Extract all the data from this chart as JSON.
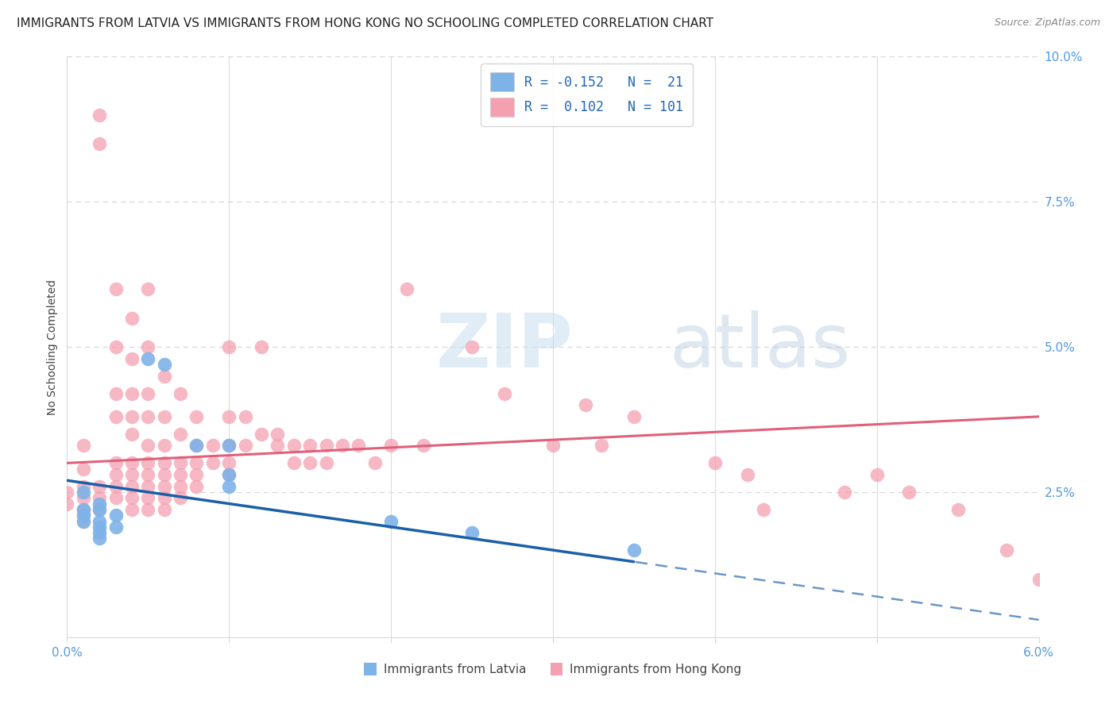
{
  "title": "IMMIGRANTS FROM LATVIA VS IMMIGRANTS FROM HONG KONG NO SCHOOLING COMPLETED CORRELATION CHART",
  "source": "Source: ZipAtlas.com",
  "ylabel": "No Schooling Completed",
  "xlim": [
    0.0,
    0.06
  ],
  "ylim": [
    0.0,
    0.1
  ],
  "xtick_positions": [
    0.0,
    0.01,
    0.02,
    0.03,
    0.04,
    0.05,
    0.06
  ],
  "xtick_labels": [
    "0.0%",
    "",
    "",
    "",
    "",
    "",
    "6.0%"
  ],
  "ytick_labels_right": [
    "2.5%",
    "5.0%",
    "7.5%",
    "10.0%"
  ],
  "yticks_right": [
    0.025,
    0.05,
    0.075,
    0.1
  ],
  "latvia_color": "#7EB3E8",
  "hongkong_color": "#F4A0B0",
  "latvia_line_color": "#1A5FA8",
  "hongkong_line_color": "#E0607A",
  "background_color": "#ffffff",
  "grid_color": "#d8d8d8",
  "axis_color": "#5599dd",
  "watermark": "ZIPatlas",
  "legend_R1": "R = -0.152",
  "legend_N1": "N =  21",
  "legend_R2": "R =  0.102",
  "legend_N2": "N = 101",
  "legend_label1": "Immigrants from Latvia",
  "legend_label2": "Immigrants from Hong Kong",
  "title_fontsize": 11,
  "source_fontsize": 9,
  "axis_label_fontsize": 10,
  "tick_fontsize": 11,
  "latvia_scatter": [
    [
      0.001,
      0.025
    ],
    [
      0.001,
      0.022
    ],
    [
      0.001,
      0.021
    ],
    [
      0.001,
      0.02
    ],
    [
      0.002,
      0.023
    ],
    [
      0.002,
      0.022
    ],
    [
      0.002,
      0.02
    ],
    [
      0.002,
      0.019
    ],
    [
      0.002,
      0.018
    ],
    [
      0.002,
      0.017
    ],
    [
      0.003,
      0.021
    ],
    [
      0.003,
      0.019
    ],
    [
      0.005,
      0.048
    ],
    [
      0.006,
      0.047
    ],
    [
      0.008,
      0.033
    ],
    [
      0.01,
      0.033
    ],
    [
      0.01,
      0.028
    ],
    [
      0.01,
      0.026
    ],
    [
      0.02,
      0.02
    ],
    [
      0.025,
      0.018
    ],
    [
      0.035,
      0.015
    ]
  ],
  "hongkong_scatter": [
    [
      0.0,
      0.025
    ],
    [
      0.0,
      0.023
    ],
    [
      0.001,
      0.026
    ],
    [
      0.001,
      0.024
    ],
    [
      0.001,
      0.022
    ],
    [
      0.001,
      0.021
    ],
    [
      0.001,
      0.02
    ],
    [
      0.001,
      0.033
    ],
    [
      0.001,
      0.029
    ],
    [
      0.002,
      0.09
    ],
    [
      0.002,
      0.085
    ],
    [
      0.002,
      0.026
    ],
    [
      0.002,
      0.024
    ],
    [
      0.002,
      0.022
    ],
    [
      0.003,
      0.06
    ],
    [
      0.003,
      0.05
    ],
    [
      0.003,
      0.042
    ],
    [
      0.003,
      0.038
    ],
    [
      0.003,
      0.03
    ],
    [
      0.003,
      0.028
    ],
    [
      0.003,
      0.026
    ],
    [
      0.003,
      0.024
    ],
    [
      0.004,
      0.055
    ],
    [
      0.004,
      0.048
    ],
    [
      0.004,
      0.042
    ],
    [
      0.004,
      0.038
    ],
    [
      0.004,
      0.035
    ],
    [
      0.004,
      0.03
    ],
    [
      0.004,
      0.028
    ],
    [
      0.004,
      0.026
    ],
    [
      0.004,
      0.024
    ],
    [
      0.004,
      0.022
    ],
    [
      0.005,
      0.06
    ],
    [
      0.005,
      0.05
    ],
    [
      0.005,
      0.042
    ],
    [
      0.005,
      0.038
    ],
    [
      0.005,
      0.033
    ],
    [
      0.005,
      0.03
    ],
    [
      0.005,
      0.028
    ],
    [
      0.005,
      0.026
    ],
    [
      0.005,
      0.024
    ],
    [
      0.005,
      0.022
    ],
    [
      0.006,
      0.045
    ],
    [
      0.006,
      0.038
    ],
    [
      0.006,
      0.033
    ],
    [
      0.006,
      0.03
    ],
    [
      0.006,
      0.028
    ],
    [
      0.006,
      0.026
    ],
    [
      0.006,
      0.024
    ],
    [
      0.006,
      0.022
    ],
    [
      0.007,
      0.042
    ],
    [
      0.007,
      0.035
    ],
    [
      0.007,
      0.03
    ],
    [
      0.007,
      0.028
    ],
    [
      0.007,
      0.026
    ],
    [
      0.007,
      0.024
    ],
    [
      0.008,
      0.038
    ],
    [
      0.008,
      0.033
    ],
    [
      0.008,
      0.03
    ],
    [
      0.008,
      0.028
    ],
    [
      0.008,
      0.026
    ],
    [
      0.009,
      0.033
    ],
    [
      0.009,
      0.03
    ],
    [
      0.01,
      0.05
    ],
    [
      0.01,
      0.038
    ],
    [
      0.01,
      0.033
    ],
    [
      0.01,
      0.03
    ],
    [
      0.01,
      0.028
    ],
    [
      0.011,
      0.038
    ],
    [
      0.011,
      0.033
    ],
    [
      0.012,
      0.05
    ],
    [
      0.012,
      0.035
    ],
    [
      0.013,
      0.035
    ],
    [
      0.013,
      0.033
    ],
    [
      0.014,
      0.033
    ],
    [
      0.014,
      0.03
    ],
    [
      0.015,
      0.033
    ],
    [
      0.015,
      0.03
    ],
    [
      0.016,
      0.033
    ],
    [
      0.016,
      0.03
    ],
    [
      0.017,
      0.033
    ],
    [
      0.018,
      0.033
    ],
    [
      0.019,
      0.03
    ],
    [
      0.02,
      0.033
    ],
    [
      0.021,
      0.06
    ],
    [
      0.022,
      0.033
    ],
    [
      0.025,
      0.05
    ],
    [
      0.027,
      0.042
    ],
    [
      0.03,
      0.033
    ],
    [
      0.032,
      0.04
    ],
    [
      0.033,
      0.033
    ],
    [
      0.035,
      0.038
    ],
    [
      0.04,
      0.03
    ],
    [
      0.042,
      0.028
    ],
    [
      0.043,
      0.022
    ],
    [
      0.048,
      0.025
    ],
    [
      0.05,
      0.028
    ],
    [
      0.052,
      0.025
    ],
    [
      0.055,
      0.022
    ],
    [
      0.058,
      0.015
    ],
    [
      0.06,
      0.01
    ]
  ]
}
